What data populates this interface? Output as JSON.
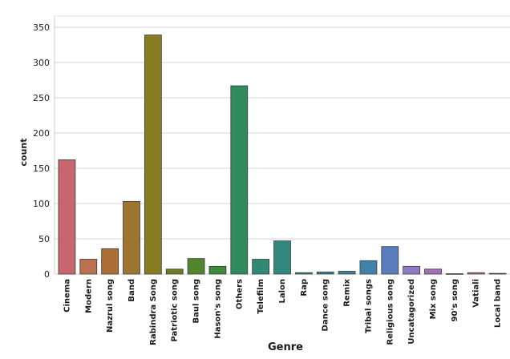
{
  "chart_data": {
    "type": "bar",
    "xlabel": "Genre",
    "ylabel": "count",
    "ylim": [
      0,
      350
    ],
    "yticks": [
      0,
      50,
      100,
      150,
      200,
      250,
      300,
      350
    ],
    "grid": "horizontal",
    "categories": [
      "Cinema",
      "Modern",
      "Nazrul song",
      "Band",
      "Rabindra Song",
      "Patriotic song",
      "Baul song",
      "Hason's song",
      "Others",
      "Telefilm",
      "Lalon",
      "Rap",
      "Dance song",
      "Remix",
      "Tribal songs",
      "Religious song",
      "Uncatagorized",
      "Mix song",
      "90's song",
      "Vatiali",
      "Local band"
    ],
    "values": [
      162,
      21,
      36,
      103,
      339,
      7,
      22,
      11,
      267,
      21,
      47,
      2,
      3,
      4,
      19,
      39,
      11,
      7,
      0.5,
      2,
      1
    ],
    "colors": [
      "#c8666f",
      "#bc7050",
      "#ad6f35",
      "#9e7530",
      "#887c22",
      "#6a7f24",
      "#50872e",
      "#3d8a3e",
      "#2f8a5c",
      "#2f8a73",
      "#32887f",
      "#348788",
      "#368591",
      "#38849a",
      "#3e83aa",
      "#5a7ebd",
      "#8f7ac3",
      "#a76eb6",
      "#bd6bad",
      "#c86aa1",
      "#cb6a93"
    ]
  }
}
